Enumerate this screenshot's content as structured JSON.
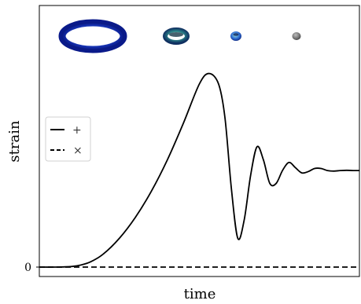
{
  "chart_data": {
    "type": "line",
    "xlabel": "time",
    "ylabel": "strain",
    "ylim": [
      -0.05,
      1.0
    ],
    "xlim": [
      0,
      1
    ],
    "y_ticks": [
      {
        "value": 0,
        "label": "0"
      }
    ],
    "legend": {
      "placement": "center-left",
      "entries": [
        {
          "label": "+",
          "style": "solid"
        },
        {
          "label": "×",
          "style": "dashed"
        }
      ]
    },
    "series": [
      {
        "name": "+",
        "style": "solid",
        "color": "#000000",
        "x": [
          0.0,
          0.05,
          0.1,
          0.13,
          0.16,
          0.2,
          0.25,
          0.3,
          0.35,
          0.4,
          0.45,
          0.5,
          0.53,
          0.56,
          0.58,
          0.6,
          0.62,
          0.64,
          0.66,
          0.68,
          0.7,
          0.72,
          0.74,
          0.76,
          0.78,
          0.8,
          0.82,
          0.84,
          0.86,
          0.88,
          0.9,
          0.92,
          0.94,
          0.96,
          0.98,
          1.0
        ],
        "y": [
          0.0,
          0.0,
          0.002,
          0.008,
          0.02,
          0.05,
          0.11,
          0.19,
          0.29,
          0.41,
          0.55,
          0.7,
          0.74,
          0.7,
          0.57,
          0.3,
          0.11,
          0.18,
          0.35,
          0.46,
          0.41,
          0.32,
          0.32,
          0.37,
          0.4,
          0.38,
          0.36,
          0.365,
          0.377,
          0.377,
          0.369,
          0.367,
          0.369,
          0.37,
          0.369,
          0.369
        ]
      },
      {
        "name": "×",
        "style": "dashed",
        "color": "#000000",
        "x": [
          0.0,
          1.0
        ],
        "y": [
          0.0,
          0.0
        ]
      }
    ],
    "insets": [
      {
        "name": "large-ring",
        "color": "#1f3fd6"
      },
      {
        "name": "medium-ring",
        "color": "#2a7a6a"
      },
      {
        "name": "small-ring",
        "color": "#2a5fd0"
      },
      {
        "name": "remnant-sphere",
        "color": "#7a7a7a"
      }
    ]
  }
}
